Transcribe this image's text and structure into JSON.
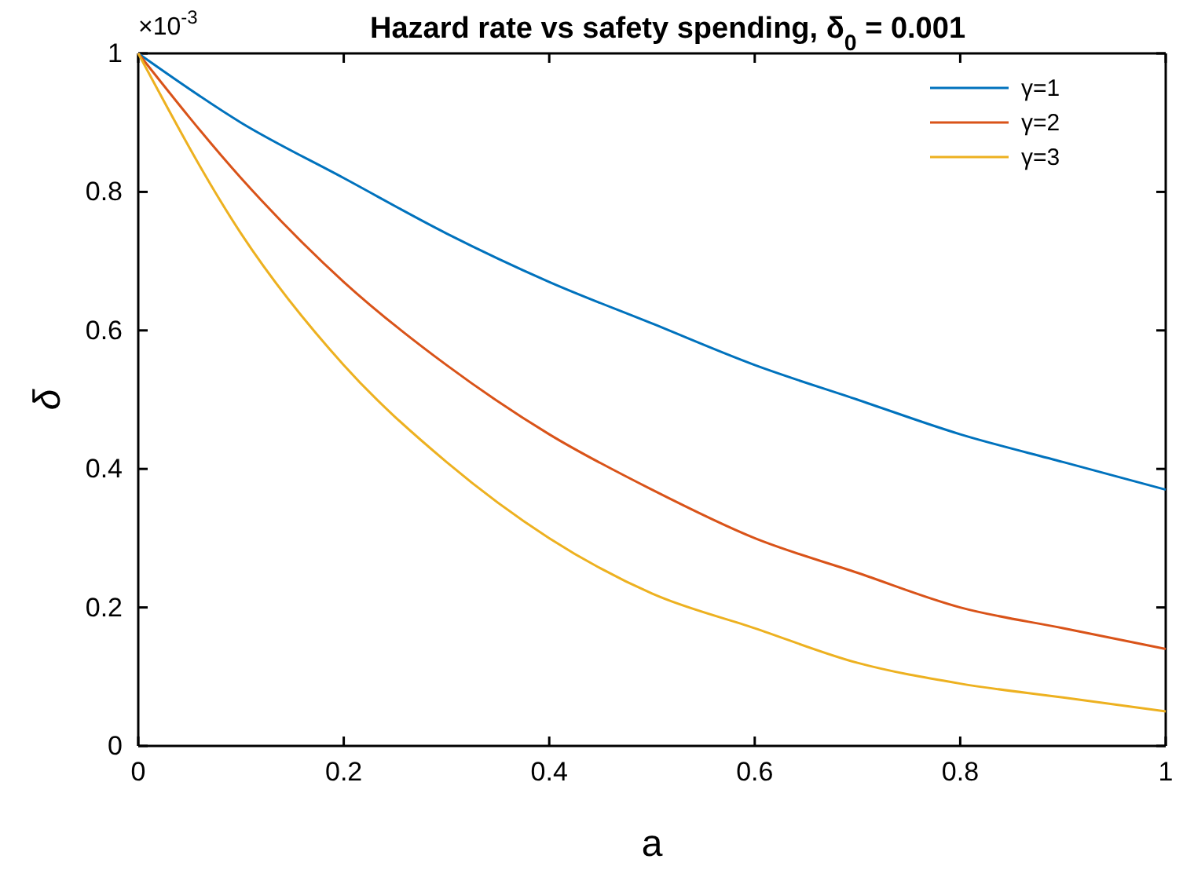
{
  "chart_data": {
    "type": "line",
    "title": "Hazard rate vs safety spending, δ$_{0}$ = 0.001",
    "xlabel": "a",
    "ylabel": "δ",
    "annotations": [
      "×10$^{-3}$"
    ],
    "x": [
      0,
      0.1,
      0.2,
      0.3,
      0.4,
      0.5,
      0.6,
      0.7,
      0.8,
      0.9,
      1
    ],
    "series": [
      {
        "name": "γ=1",
        "color": "#0072bd",
        "values": [
          1,
          0.9,
          0.82,
          0.74,
          0.67,
          0.61,
          0.55,
          0.5,
          0.45,
          0.41,
          0.37
        ]
      },
      {
        "name": "γ=2",
        "color": "#d95319",
        "values": [
          1,
          0.82,
          0.67,
          0.55,
          0.45,
          0.37,
          0.3,
          0.25,
          0.2,
          0.17,
          0.14
        ]
      },
      {
        "name": "γ=3",
        "color": "#edb120",
        "values": [
          1,
          0.74,
          0.55,
          0.41,
          0.3,
          0.22,
          0.17,
          0.12,
          0.09,
          0.07,
          0.05
        ]
      }
    ],
    "xlim": [
      0,
      1
    ],
    "xticks": [
      0,
      0.2,
      0.4,
      0.6,
      0.8,
      1
    ],
    "ylim": [
      0,
      1
    ],
    "yticks": [
      0,
      0.2,
      0.4,
      0.6,
      0.8,
      1
    ],
    "legend": "top right",
    "marker": "none",
    "line_style": "solid"
  }
}
